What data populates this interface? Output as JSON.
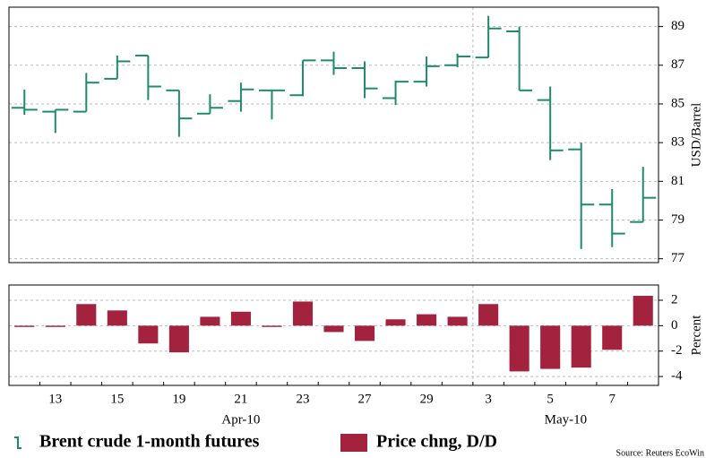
{
  "chart_data": [
    {
      "type": "ohlc",
      "ylabel": "USD/Barrel",
      "series": [
        {
          "name": "Brent crude 1-month futures",
          "color": "#1f8a6e",
          "open": [
            84.8,
            84.6,
            84.6,
            86.3,
            87.5,
            85.7,
            84.5,
            85.15,
            85.7,
            85.45,
            87.25,
            86.85,
            85.3,
            86.15,
            87.0,
            87.4,
            88.75,
            85.2,
            82.65,
            79.8,
            78.9
          ],
          "high": [
            85.74,
            84.7,
            86.6,
            87.5,
            87.5,
            85.7,
            85.5,
            86.1,
            85.7,
            87.25,
            87.7,
            87.2,
            86.2,
            87.45,
            87.6,
            89.55,
            89.0,
            85.9,
            83.0,
            80.6,
            81.75
          ],
          "low": [
            84.44,
            83.5,
            84.6,
            86.3,
            85.2,
            83.3,
            84.5,
            84.6,
            84.2,
            85.4,
            86.5,
            85.3,
            84.95,
            85.9,
            86.9,
            87.4,
            85.7,
            82.1,
            77.5,
            77.6,
            78.9
          ],
          "close": [
            84.7,
            84.7,
            86.1,
            87.2,
            85.9,
            84.25,
            84.8,
            85.75,
            85.7,
            87.25,
            86.85,
            85.8,
            86.15,
            86.95,
            87.45,
            88.9,
            85.7,
            82.6,
            79.8,
            78.3,
            80.15
          ]
        }
      ],
      "ylim": [
        76.8,
        90.0
      ],
      "yticks": [
        77,
        79,
        81,
        83,
        85,
        87,
        89
      ],
      "grid": true
    },
    {
      "type": "bar",
      "ylabel": "Percent",
      "categories": [
        null,
        "13",
        null,
        "15",
        null,
        "19",
        null,
        "21",
        null,
        "23",
        null,
        "27",
        null,
        "29",
        null,
        "3",
        null,
        "5",
        null,
        "7",
        null
      ],
      "groups": [
        {
          "label": "Apr-10",
          "start": 0,
          "end": 14
        },
        {
          "label": "May-10",
          "start": 15,
          "end": 20
        }
      ],
      "series": [
        {
          "name": "Price chng, D/D",
          "color": "#a3233f",
          "values": [
            -0.1,
            -0.1,
            1.7,
            1.2,
            -1.4,
            -2.1,
            0.7,
            1.1,
            -0.1,
            1.9,
            -0.5,
            -1.2,
            0.5,
            0.9,
            0.7,
            1.7,
            -3.6,
            -3.4,
            -3.3,
            -1.9,
            2.35
          ]
        }
      ],
      "ylim": [
        -4.7,
        3.2
      ],
      "yticks": [
        -4,
        -2,
        0,
        2
      ],
      "grid": true
    }
  ],
  "source": "Source: Reuters EcoWin"
}
